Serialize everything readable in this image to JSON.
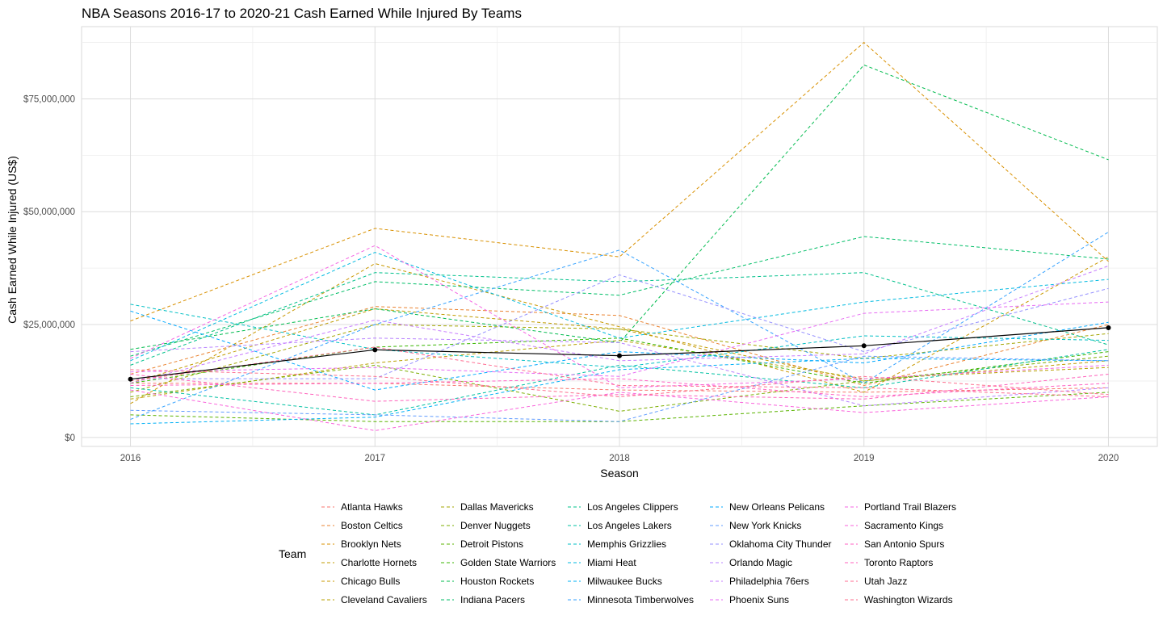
{
  "chart_data": {
    "type": "line",
    "title": "NBA Seasons 2016-17 to 2020-21 Cash Earned While Injured By Teams",
    "xlabel": "Season",
    "ylabel": "Cash Earned While Injured (US$)",
    "x": [
      2016,
      2017,
      2018,
      2019,
      2020
    ],
    "x_ticks": [
      "2016",
      "2017",
      "2018",
      "2019",
      "2020"
    ],
    "y_ticks": [
      "$0",
      "$25,000,000",
      "$50,000,000",
      "$75,000,000"
    ],
    "y_tick_values": [
      0,
      25000000,
      50000000,
      75000000
    ],
    "xlim": [
      2015.8,
      2020.2
    ],
    "ylim": [
      -2000000,
      91000000
    ],
    "grid": true,
    "legend_title": "Team",
    "legend_position": "bottom",
    "series": [
      {
        "name": "Atlanta Hawks",
        "color": "#F8766D",
        "values": [
          12000000,
          12000000,
          10500000,
          10000000,
          11000000
        ]
      },
      {
        "name": "Boston Celtics",
        "color": "#EA8331",
        "values": [
          14000000,
          29000000,
          27000000,
          11500000,
          25000000
        ]
      },
      {
        "name": "Brooklyn Nets",
        "color": "#D89000",
        "values": [
          25800000,
          46300000,
          40000000,
          87500000,
          39000000
        ]
      },
      {
        "name": "Charlotte Hornets",
        "color": "#C09B00",
        "values": [
          12000000,
          28500000,
          24000000,
          12500000,
          17000000
        ]
      },
      {
        "name": "Chicago Bulls",
        "color": "#C99800",
        "values": [
          7500000,
          38500000,
          24500000,
          10000000,
          40000000
        ]
      },
      {
        "name": "Cleveland Cavaliers",
        "color": "#B8A000",
        "values": [
          8500000,
          16500000,
          21500000,
          13000000,
          15500000
        ]
      },
      {
        "name": "Dallas Mavericks",
        "color": "#A3A500",
        "values": [
          10000000,
          25000000,
          24000000,
          17500000,
          23000000
        ]
      },
      {
        "name": "Denver Nuggets",
        "color": "#7CAE00",
        "values": [
          9000000,
          16000000,
          5800000,
          12500000,
          18000000
        ]
      },
      {
        "name": "Detroit Pistons",
        "color": "#5BB300",
        "values": [
          5000000,
          3500000,
          3500000,
          7000000,
          10000000
        ]
      },
      {
        "name": "Golden State Warriors",
        "color": "#39B600",
        "values": [
          12000000,
          20000000,
          22000000,
          12000000,
          19000000
        ]
      },
      {
        "name": "Houston Rockets",
        "color": "#00BB4E",
        "values": [
          19500000,
          28500000,
          21000000,
          82500000,
          61500000
        ]
      },
      {
        "name": "Indiana Pacers",
        "color": "#00BE67",
        "values": [
          18000000,
          34500000,
          31500000,
          44500000,
          39500000
        ]
      },
      {
        "name": "Los Angeles Clippers",
        "color": "#00C08B",
        "values": [
          16000000,
          36500000,
          34500000,
          36500000,
          20500000
        ]
      },
      {
        "name": "Los Angeles Lakers",
        "color": "#00C1A3",
        "values": [
          11000000,
          5000000,
          16000000,
          11000000,
          19500000
        ]
      },
      {
        "name": "Memphis Grizzlies",
        "color": "#00BFC4",
        "values": [
          29500000,
          19500000,
          15500000,
          22500000,
          21500000
        ]
      },
      {
        "name": "Miami Heat",
        "color": "#00BAE0",
        "values": [
          17000000,
          41000000,
          22000000,
          30000000,
          35000000
        ]
      },
      {
        "name": "Milwaukee Bucks",
        "color": "#00B0F6",
        "values": [
          3000000,
          4500000,
          15000000,
          17500000,
          17000000
        ]
      },
      {
        "name": "Minnesota Timberwolves",
        "color": "#35A2FF",
        "values": [
          4000000,
          25000000,
          41500000,
          12000000,
          45500000
        ]
      },
      {
        "name": "New Orleans Pelicans",
        "color": "#00A9FF",
        "values": [
          28000000,
          10500000,
          19000000,
          16500000,
          25500000
        ]
      },
      {
        "name": "New York Knicks",
        "color": "#619CFF",
        "values": [
          6000000,
          5000000,
          3500000,
          18000000,
          17000000
        ]
      },
      {
        "name": "Oklahoma City Thunder",
        "color": "#9590FF",
        "values": [
          13000000,
          13000000,
          36000000,
          19000000,
          33000000
        ]
      },
      {
        "name": "Orlando Magic",
        "color": "#B983FF",
        "values": [
          19000000,
          22000000,
          21000000,
          7000000,
          11000000
        ]
      },
      {
        "name": "Philadelphia 76ers",
        "color": "#C77CFF",
        "values": [
          12000000,
          26000000,
          17000000,
          18500000,
          38000000
        ]
      },
      {
        "name": "Phoenix Suns",
        "color": "#E76BF3",
        "values": [
          14500000,
          15500000,
          13500000,
          27500000,
          30000000
        ]
      },
      {
        "name": "Portland Trail Blazers",
        "color": "#F564E3",
        "values": [
          17500000,
          42500000,
          11000000,
          13000000,
          16000000
        ]
      },
      {
        "name": "Sacramento Kings",
        "color": "#FA62DB",
        "values": [
          10500000,
          1500000,
          10000000,
          5500000,
          9000000
        ]
      },
      {
        "name": "San Antonio Spurs",
        "color": "#FF61C3",
        "values": [
          11500000,
          12000000,
          13000000,
          9000000,
          12000000
        ]
      },
      {
        "name": "Toronto Raptors",
        "color": "#FF62BC",
        "values": [
          14000000,
          8000000,
          9500000,
          8500000,
          14000000
        ]
      },
      {
        "name": "Utah Jazz",
        "color": "#FF6C91",
        "values": [
          12500000,
          20000000,
          11500000,
          11000000,
          9000000
        ]
      },
      {
        "name": "Washington Wizards",
        "color": "#FD6F8E",
        "values": [
          15000000,
          13500000,
          9000000,
          13500000,
          9500000
        ]
      }
    ],
    "average": {
      "color": "#000000",
      "values": [
        12900000,
        19400000,
        18100000,
        20300000,
        24300000
      ]
    }
  }
}
